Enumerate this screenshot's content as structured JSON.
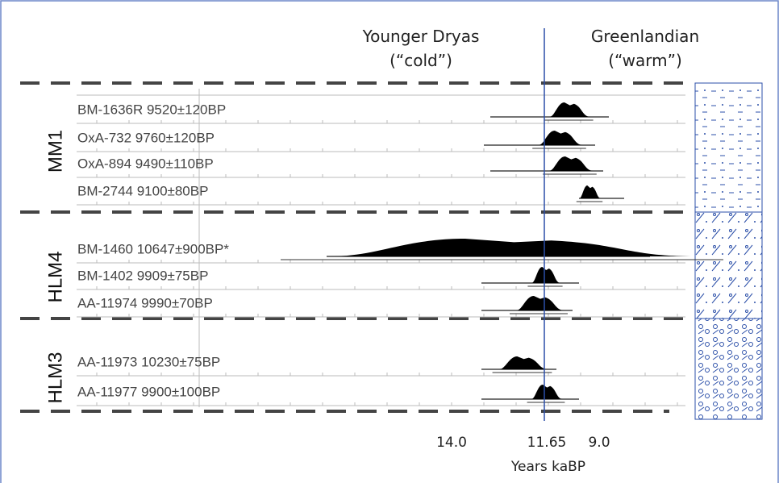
{
  "header": {
    "left": {
      "title": "Younger Dryas",
      "subtitle": "(“cold”)"
    },
    "right": {
      "title": "Greenlandian",
      "subtitle": "(“warm”)"
    }
  },
  "groups": [
    {
      "label": "MM1",
      "samples": [
        "BM-1636R  9520±120BP",
        "OxA-732  9760±120BP",
        "OxA-894  9490±110BP",
        "BM-2744  9100±80BP"
      ]
    },
    {
      "label": "HLM4",
      "samples": [
        "BM-1460  10647±900BP*",
        "BM-1402  9909±75BP",
        "AA-11974  9990±70BP"
      ]
    },
    {
      "label": "HLM3",
      "samples": [
        "AA-11973  10230±75BP",
        "AA-11977  9900±100BP"
      ]
    }
  ],
  "axis": {
    "ticks": [
      "14.0",
      "11.65",
      "9.0"
    ],
    "label": "Years kaBP"
  }
}
